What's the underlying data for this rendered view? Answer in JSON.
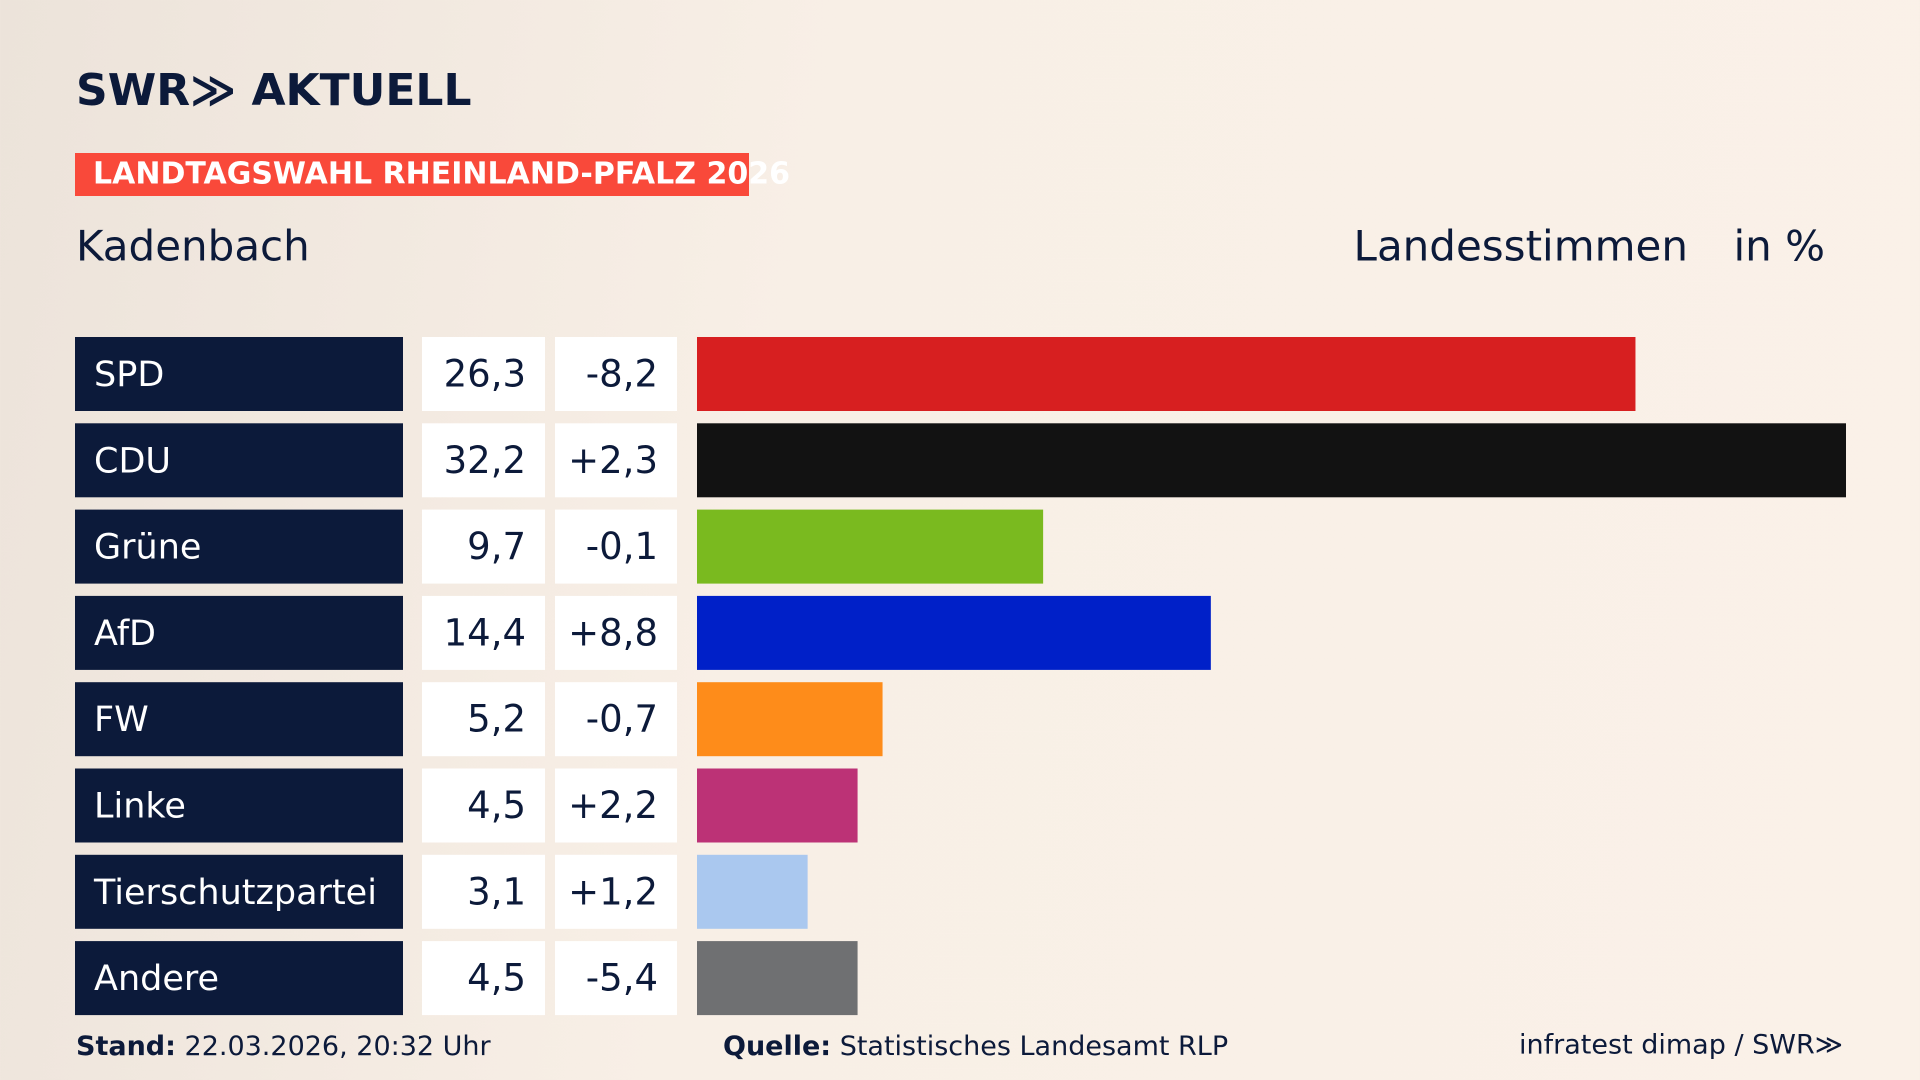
{
  "chart_data": {
    "type": "bar",
    "brand": "SWR≫ AKTUELL",
    "title": "LANDTAGSWAHL RHEINLAND-PFALZ 2026",
    "subtitle": "Kadenbach",
    "vote_type": "Landesstimmen",
    "unit": "in %",
    "categories": [
      "SPD",
      "CDU",
      "Grüne",
      "AfD",
      "FW",
      "Linke",
      "Tierschutzpartei",
      "Andere"
    ],
    "values": [
      26.3,
      32.2,
      9.7,
      14.4,
      5.2,
      4.5,
      3.1,
      4.5
    ],
    "value_labels": [
      "26,3",
      "32,2",
      "9,7",
      "14,4",
      "5,2",
      "4,5",
      "3,1",
      "4,5"
    ],
    "changes": [
      "-8,2",
      "+2,3",
      "-0,1",
      "+8,8",
      "-0,7",
      "+2,2",
      "+1,2",
      "-5,4"
    ],
    "colors": [
      "#d71f20",
      "#121212",
      "#7aba1f",
      "#0020c8",
      "#fe8c1a",
      "#bc3276",
      "#aac8ef",
      "#6f7072"
    ],
    "stand_label": "Stand:",
    "stand": "22.03.2026, 20:32 Uhr",
    "source_label": "Quelle:",
    "source": "Statistisches Landesamt RLP",
    "credit": "infratest dimap / SWR≫"
  }
}
